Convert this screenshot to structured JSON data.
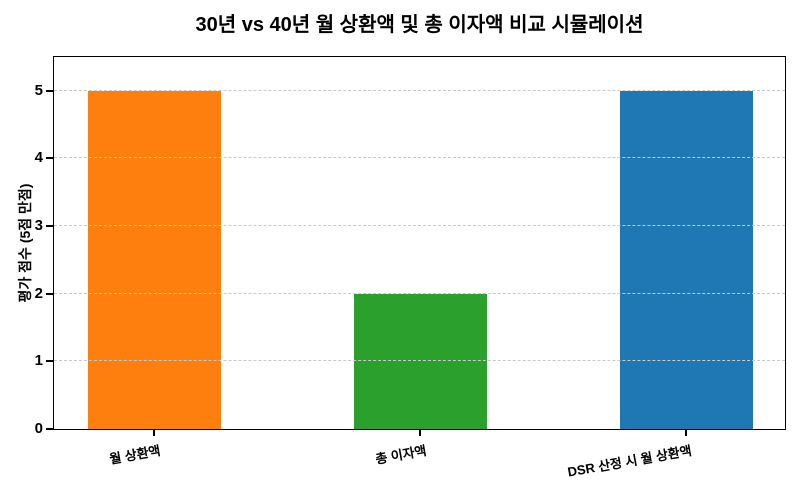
{
  "chart_data": {
    "type": "bar",
    "title": "30년 vs 40년 월 상환액 및 총 이자액 비교 시뮬레이션",
    "categories": [
      "월 상환액",
      "총 이자액",
      "DSR 산정 시 월 상환액"
    ],
    "values": [
      5,
      2,
      5
    ],
    "bar_colors": [
      "#ff7f0e",
      "#2ca02c",
      "#1f77b4"
    ],
    "xlabel": "",
    "ylabel": "평가 점수 (5점 만점)",
    "yticks": [
      0,
      1,
      2,
      3,
      4,
      5
    ],
    "ylim": [
      0,
      5.5
    ],
    "grid": {
      "axis": "y",
      "style": "dashed",
      "color": "#c9c9c9"
    },
    "xtick_rotation_deg": 10,
    "legend": "none",
    "background_color": "#ffffff",
    "spine_color": "#000000"
  }
}
